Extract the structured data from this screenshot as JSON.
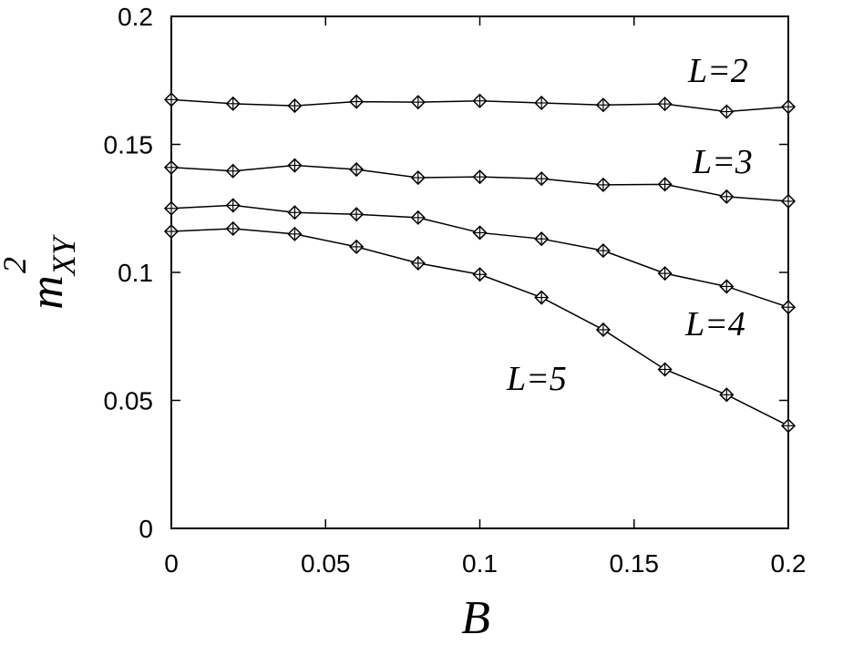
{
  "chart_data": {
    "type": "line",
    "xlabel": "B",
    "ylabel": {
      "base": "m",
      "superscript": "2",
      "subscript": "XY"
    },
    "xlim": [
      0,
      0.2
    ],
    "ylim": [
      0,
      0.2
    ],
    "xticks": [
      "0",
      "0.05",
      "0.1",
      "0.15",
      "0.2"
    ],
    "yticks": [
      "0",
      "0.05",
      "0.1",
      "0.15",
      "0.2"
    ],
    "grid": false,
    "marker": "diamond",
    "x": [
      0,
      0.02,
      0.04,
      0.06,
      0.08,
      0.1,
      0.12,
      0.14,
      0.16,
      0.18,
      0.2
    ],
    "series": [
      {
        "name": "L=2",
        "values": [
          0.1675,
          0.1659,
          0.1651,
          0.1667,
          0.1665,
          0.167,
          0.1662,
          0.1654,
          0.1658,
          0.1628,
          0.1647
        ]
      },
      {
        "name": "L=3",
        "values": [
          0.141,
          0.1396,
          0.1418,
          0.1402,
          0.137,
          0.1373,
          0.1366,
          0.1342,
          0.1344,
          0.1296,
          0.1278
        ]
      },
      {
        "name": "L=4",
        "values": [
          0.125,
          0.1262,
          0.1234,
          0.1227,
          0.1214,
          0.1155,
          0.1131,
          0.1085,
          0.0996,
          0.0945,
          0.0864
        ]
      },
      {
        "name": "L=5",
        "values": [
          0.116,
          0.1171,
          0.115,
          0.11,
          0.1036,
          0.0992,
          0.0902,
          0.0776,
          0.0621,
          0.0522,
          0.0401
        ]
      }
    ]
  }
}
